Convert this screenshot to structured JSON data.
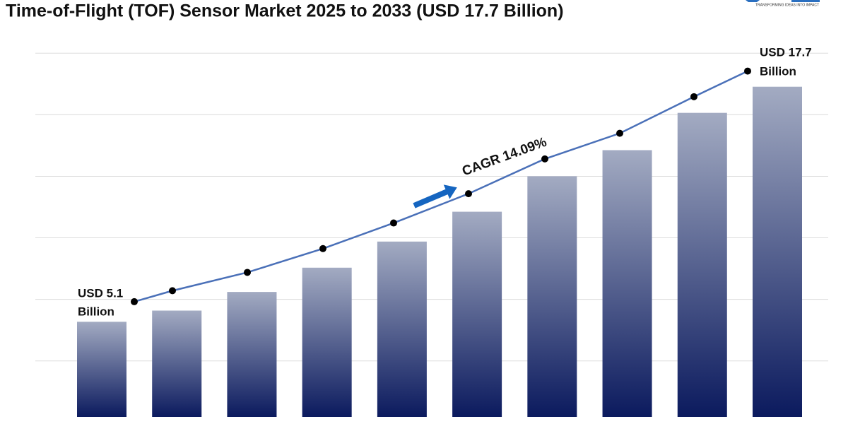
{
  "chart_data": {
    "type": "bar",
    "title": "Time-of-Flight (TOF) Sensor Market 2025 to 2033 (USD 17.7 Billion)",
    "values": [
      5.1,
      5.7,
      6.7,
      8.0,
      9.4,
      11.0,
      12.9,
      14.3,
      16.3,
      17.7
    ],
    "ylim": [
      0,
      20
    ],
    "gridlines": [
      3.0,
      6.3,
      9.6,
      12.9,
      16.2,
      19.5
    ],
    "grid": true,
    "bar_color_top": "#a3abc2",
    "bar_color_bottom": "#0b1a5e",
    "line_color": "#4a70b8",
    "start_label": [
      "USD 5.1",
      "Billion"
    ],
    "end_label": [
      "USD 17.7",
      "Billion"
    ],
    "cagr_label": "CAGR 14.09%",
    "logo_tagline": "TRANSFORMING IDEAS INTO IMPACT"
  }
}
